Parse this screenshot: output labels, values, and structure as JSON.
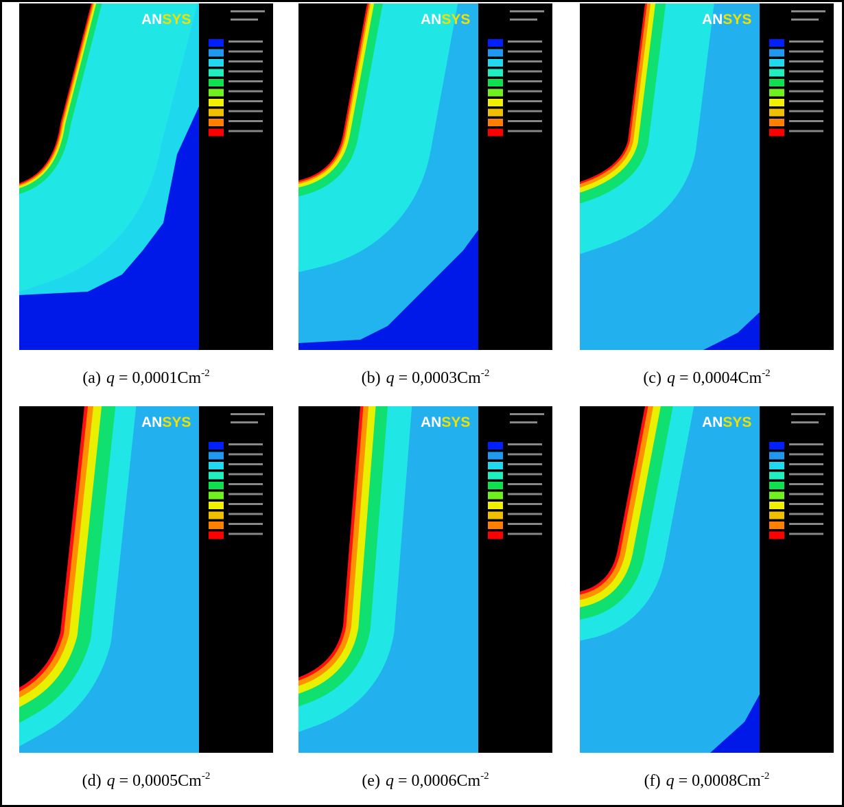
{
  "logo": {
    "first": "AN",
    "second": "SYS"
  },
  "panels": [
    {
      "label": "(a)",
      "symbol": "q",
      "equals": "= 0,0001",
      "unit": "Cm",
      "exponent": "-2"
    },
    {
      "label": "(b)",
      "symbol": "q",
      "equals": "= 0,0003",
      "unit": "Cm",
      "exponent": "-2"
    },
    {
      "label": "(c)",
      "symbol": "q",
      "equals": "= 0,0004",
      "unit": "Cm",
      "exponent": "-2"
    },
    {
      "label": "(d)",
      "symbol": "q",
      "equals": "= 0,0005",
      "unit": "Cm",
      "exponent": "-2"
    },
    {
      "label": "(e)",
      "symbol": "q",
      "equals": "= 0,0006",
      "unit": "Cm",
      "exponent": "-2"
    },
    {
      "label": "(f)",
      "symbol": "q",
      "equals": "= 0,0008",
      "unit": "Cm",
      "exponent": "-2"
    }
  ]
}
